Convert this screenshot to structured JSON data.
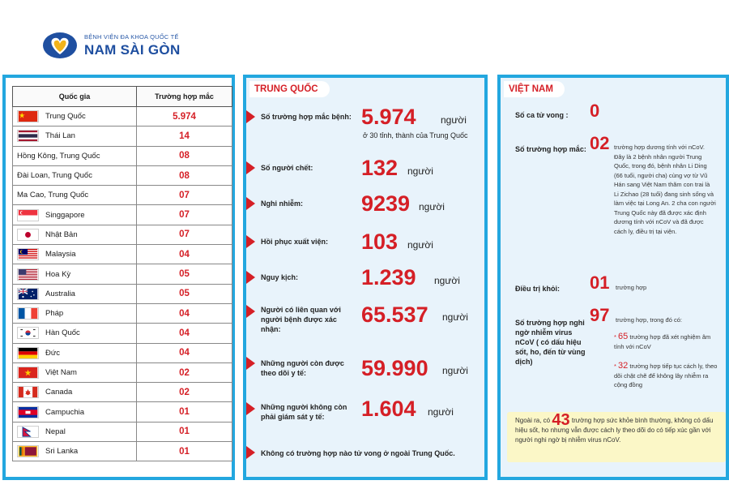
{
  "brand": {
    "subtitle": "BỆNH VIỆN ĐA KHOA QUỐC TẾ",
    "name": "NAM SÀI GÒN",
    "colors": {
      "blue": "#1f4fa0",
      "gold": "#f2b31b"
    }
  },
  "countries": {
    "headers": [
      "Quốc gia",
      "Trường hợp mắc"
    ],
    "rows": [
      {
        "name": "Trung Quốc",
        "value": "5.974",
        "flag": "china-flag"
      },
      {
        "name": "Thái Lan",
        "value": "14",
        "flag": "thailand-flag"
      },
      {
        "name": "Hồng Kông, Trung Quốc",
        "value": "08",
        "flag": ""
      },
      {
        "name": "Đài Loan, Trung Quốc",
        "value": "08",
        "flag": ""
      },
      {
        "name": "Ma Cao, Trung Quốc",
        "value": "07",
        "flag": ""
      },
      {
        "name": "Singgapore",
        "value": "07",
        "flag": "singapore-flag"
      },
      {
        "name": "Nhật Bản",
        "value": "07",
        "flag": "japan-flag"
      },
      {
        "name": "Malaysia",
        "value": "04",
        "flag": "malaysia-flag"
      },
      {
        "name": "Hoa Kỳ",
        "value": "05",
        "flag": "usa-flag"
      },
      {
        "name": "Australia",
        "value": "05",
        "flag": "australia-flag"
      },
      {
        "name": "Pháp",
        "value": "04",
        "flag": "france-flag"
      },
      {
        "name": "Hàn Quốc",
        "value": "04",
        "flag": "south-korea-flag"
      },
      {
        "name": "Đức",
        "value": "04",
        "flag": "germany-flag"
      },
      {
        "name": "Việt Nam",
        "value": "02",
        "flag": "vietnam-flag"
      },
      {
        "name": "Canada",
        "value": "02",
        "flag": "canada-flag"
      },
      {
        "name": "Campuchia",
        "value": "01",
        "flag": "cambodia-flag"
      },
      {
        "name": "Nepal",
        "value": "01",
        "flag": "nepal-flag"
      },
      {
        "name": "Sri Lanka",
        "value": "01",
        "flag": "sri-lanka-flag"
      }
    ]
  },
  "china": {
    "title": "TRUNG QUỐC",
    "stats": [
      {
        "label": "Số trường hợp mắc bệnh:",
        "value": "5.974",
        "unit": "người",
        "sub": "ở 30 tỉnh, thành của Trung Quốc"
      },
      {
        "label": "Số người chết:",
        "value": "132",
        "unit": "người"
      },
      {
        "label": "Nghi nhiễm:",
        "value": "9239",
        "unit": "người"
      },
      {
        "label": "Hồi phục xuất viện:",
        "value": "103",
        "unit": "người"
      },
      {
        "label": "Nguy kịch:",
        "value": "1.239",
        "unit": "người"
      },
      {
        "label": "Người có liên quan với người bệnh được xác nhận:",
        "value": "65.537",
        "unit": "người"
      },
      {
        "label": "Những người còn được theo dõi y tế:",
        "value": "59.990",
        "unit": "người"
      },
      {
        "label": "Những người không còn phải giám sát y tế:",
        "value": "1.604",
        "unit": "người"
      }
    ],
    "footer": "Không có trường hợp nào tử vong ở ngoài Trung Quốc."
  },
  "vietnam": {
    "title": "VIỆT NAM",
    "deaths": {
      "label": "Số ca tử vong :",
      "value": "0"
    },
    "cases": {
      "label": "Số trường hợp mắc:",
      "value": "02",
      "desc": "trường hợp dương tính với nCoV. Đây là 2 bệnh nhân người Trung Quốc, trong đó, bệnh nhân Li Ding (66 tuổi, người cha) cùng vợ từ Vũ Hán sang Việt Nam thăm con trai là Li Zichao (28 tuổi) đang sinh sống và làm việc tại Long An. 2 cha con người Trung Quốc này đã được xác định dương tính với nCoV và đã được cách ly, điều trị tại viện."
    },
    "recovered": {
      "label": "Điều trị khỏi:",
      "value": "01",
      "unit": "trường hợp"
    },
    "suspected": {
      "label": "Số trường hợp nghi ngờ nhiễm virus nCoV ( có dấu hiệu sốt, ho, đến từ vùng dịch)",
      "value": "97",
      "unit": "trường hợp, trong đó có:",
      "items": [
        {
          "num": "65",
          "text": "trường hợp đã xét nghiệm âm tính với nCoV"
        },
        {
          "num": "32",
          "text": "trường hợp tiếp tục cách ly, theo dõi chặt chẽ để không lây nhiễm ra cộng đồng"
        }
      ]
    },
    "note": {
      "prefix": "Ngoài ra, có",
      "value": "43",
      "text": "trường hợp sức khỏe bình thường, không có dấu hiệu sốt, ho nhưng vẫn được cách ly theo dõi do có tiếp xúc gần với người nghi ngờ bị nhiễm virus nCoV."
    }
  }
}
